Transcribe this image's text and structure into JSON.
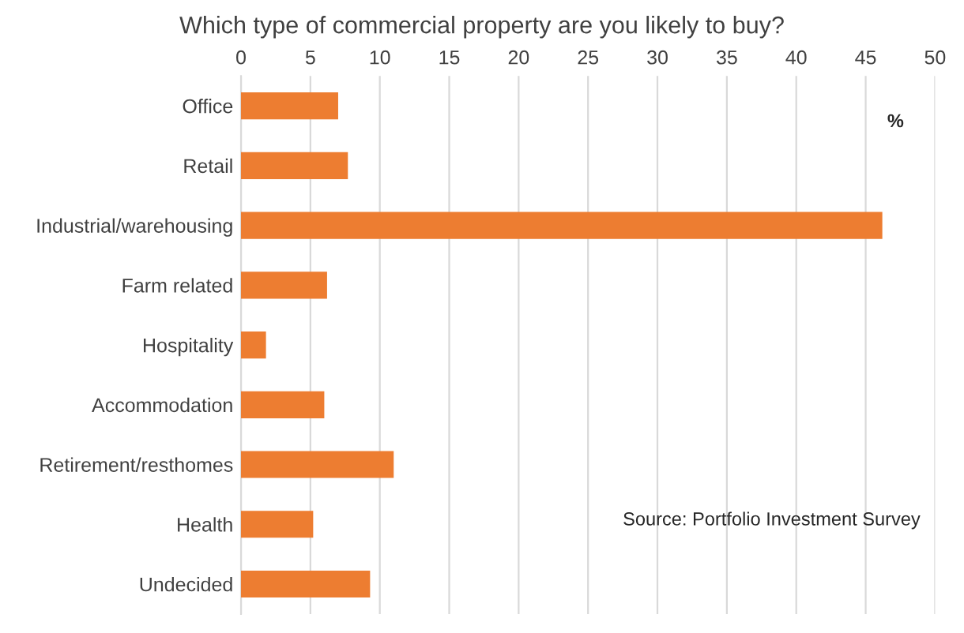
{
  "chart_data": {
    "type": "bar",
    "orientation": "horizontal",
    "title": "Which type of commercial property are you likely to buy?",
    "categories": [
      "Office",
      "Retail",
      "Industrial/warehousing",
      "Farm related",
      "Hospitality",
      "Accommodation",
      "Retirement/resthomes",
      "Health",
      "Undecided"
    ],
    "values": [
      7.0,
      7.7,
      46.2,
      6.2,
      1.8,
      6.0,
      11.0,
      5.2,
      9.3
    ],
    "color": "#ed7d31",
    "xlim": [
      0,
      50
    ],
    "xticks": [
      0,
      5,
      10,
      15,
      20,
      25,
      30,
      35,
      40,
      45,
      50
    ],
    "grid": "x",
    "annotations": [
      "%",
      "Source: Portfolio Investment Survey"
    ]
  }
}
